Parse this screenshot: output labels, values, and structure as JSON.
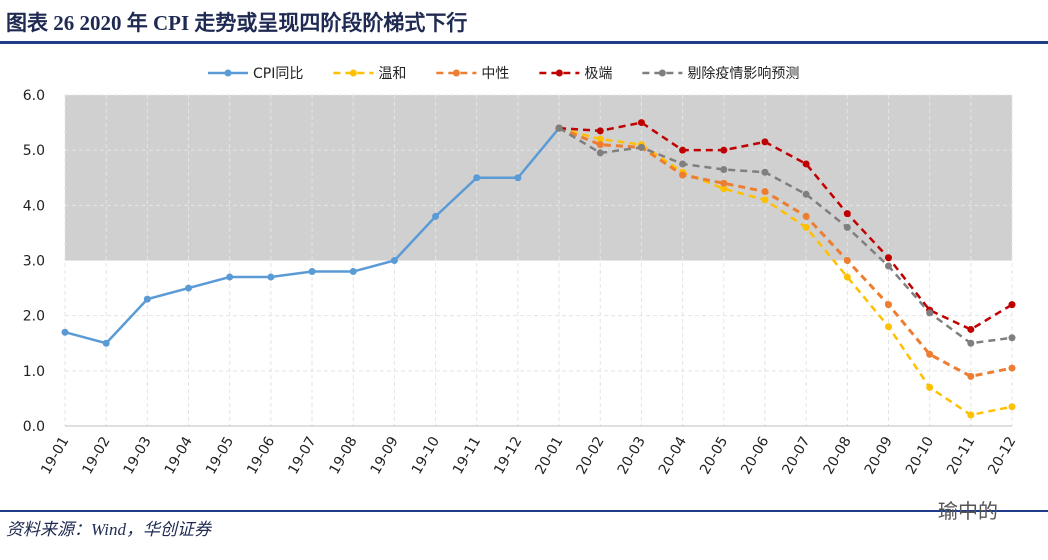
{
  "chart_data": {
    "type": "line",
    "title": "图表 26   2020 年 CPI 走势或呈现四阶段阶梯式下行",
    "source": "资料来源：Wind，华创证券",
    "watermark": "瑜中的",
    "categories": [
      "19-01",
      "19-02",
      "19-03",
      "19-04",
      "19-05",
      "19-06",
      "19-07",
      "19-08",
      "19-09",
      "19-10",
      "19-11",
      "19-12",
      "20-01",
      "20-02",
      "20-03",
      "20-04",
      "20-05",
      "20-06",
      "20-07",
      "20-08",
      "20-09",
      "20-10",
      "20-11",
      "20-12"
    ],
    "series": [
      {
        "name": "CPI同比",
        "color": "#5b9bd5",
        "style": "solid",
        "values": [
          1.7,
          1.5,
          2.3,
          2.5,
          2.7,
          2.7,
          2.8,
          2.8,
          3.0,
          3.8,
          4.5,
          4.5,
          5.4,
          null,
          null,
          null,
          null,
          null,
          null,
          null,
          null,
          null,
          null,
          null
        ]
      },
      {
        "name": "温和",
        "color": "#ffc000",
        "style": "dashed",
        "values": [
          null,
          null,
          null,
          null,
          null,
          null,
          null,
          null,
          null,
          null,
          null,
          null,
          5.4,
          5.2,
          5.1,
          4.6,
          4.3,
          4.1,
          3.6,
          2.7,
          1.8,
          0.7,
          0.2,
          0.35
        ]
      },
      {
        "name": "中性",
        "color": "#ed7d31",
        "style": "dashed",
        "values": [
          null,
          null,
          null,
          null,
          null,
          null,
          null,
          null,
          null,
          null,
          null,
          null,
          5.4,
          5.1,
          5.05,
          4.55,
          4.4,
          4.25,
          3.8,
          3.0,
          2.2,
          1.3,
          0.9,
          1.05
        ]
      },
      {
        "name": "极端",
        "color": "#c00000",
        "style": "dashed",
        "values": [
          null,
          null,
          null,
          null,
          null,
          null,
          null,
          null,
          null,
          null,
          null,
          null,
          5.4,
          5.35,
          5.5,
          5.0,
          5.0,
          5.15,
          4.75,
          3.85,
          3.05,
          2.1,
          1.75,
          2.2
        ]
      },
      {
        "name": "剔除疫情影响预测",
        "color": "#7f7f7f",
        "style": "dashed",
        "values": [
          null,
          null,
          null,
          null,
          null,
          null,
          null,
          null,
          null,
          null,
          null,
          null,
          5.4,
          4.95,
          5.05,
          4.75,
          4.65,
          4.6,
          4.2,
          3.6,
          2.9,
          2.05,
          1.5,
          1.6
        ]
      }
    ],
    "shade_range": [
      3,
      6
    ],
    "ylim": [
      0,
      6
    ],
    "yticks": [
      {
        "value": 0,
        "label": "0.0"
      },
      {
        "value": 1,
        "label": "1.0"
      },
      {
        "value": 2,
        "label": "2.0"
      },
      {
        "value": 3,
        "label": "3.0"
      },
      {
        "value": 4,
        "label": "4.0"
      },
      {
        "value": 5,
        "label": "5.0"
      },
      {
        "value": 6,
        "label": "6.0"
      }
    ],
    "grid": true
  }
}
